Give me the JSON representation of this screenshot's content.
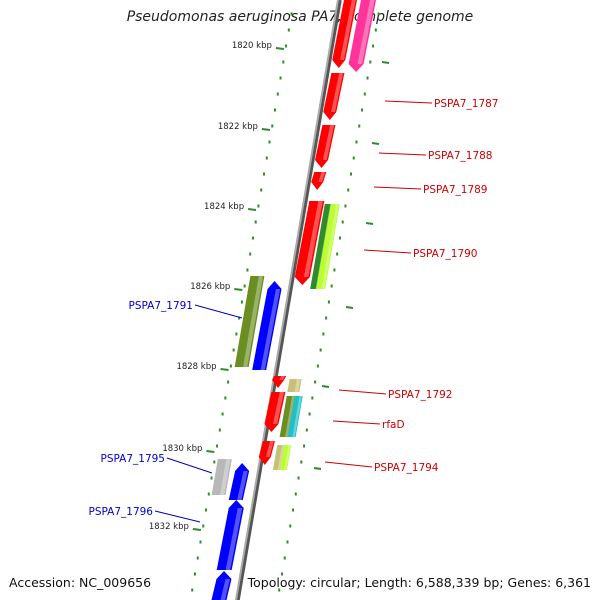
{
  "title": "Pseudomonas aeruginosa PA7, complete genome",
  "accession_text": "Accession: NC_009656",
  "summary_text": "Topology: circular; Length: 6,588,339 bp; Genes: 6,361",
  "ticks": [
    "1820 kbp",
    "1822 kbp",
    "1824 kbp",
    "1826 kbp",
    "1828 kbp",
    "1830 kbp",
    "1832 kbp"
  ],
  "gene_labels": [
    {
      "text": "PSPA7_1787",
      "color": "#cc0000"
    },
    {
      "text": "PSPA7_1788",
      "color": "#cc0000"
    },
    {
      "text": "PSPA7_1789",
      "color": "#cc0000"
    },
    {
      "text": "PSPA7_1790",
      "color": "#cc0000"
    },
    {
      "text": "PSPA7_1791",
      "color": "#0000cc"
    },
    {
      "text": "PSPA7_1792",
      "color": "#cc0000"
    },
    {
      "text": "rfaD",
      "color": "#cc0000"
    },
    {
      "text": "PSPA7_1794",
      "color": "#cc0000"
    },
    {
      "text": "PSPA7_1795",
      "color": "#0000cc"
    },
    {
      "text": "PSPA7_1796",
      "color": "#0000cc"
    }
  ],
  "colors": {
    "backbone": "#888888",
    "dots": "#2e8b2e",
    "red_gene": "#ff0000",
    "pink_gene": "#ff3399",
    "blue_gene": "#0000ff",
    "olive": "#6b8e23",
    "khaki": "#c8c078",
    "cyan": "#20c0c8",
    "lime": "#bbff33",
    "grey_gene": "#b8b8b8"
  }
}
